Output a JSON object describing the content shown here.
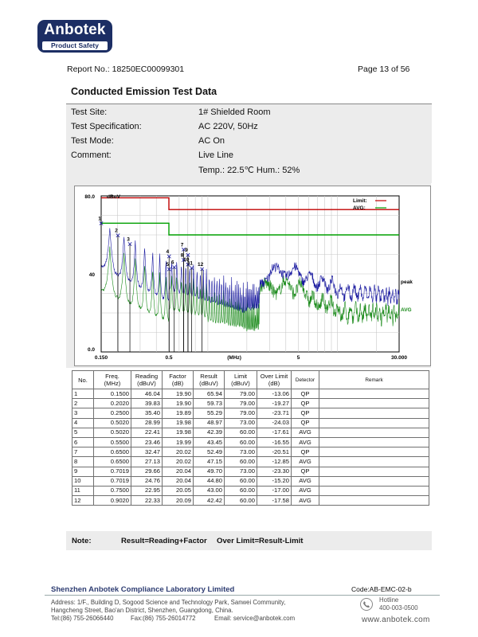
{
  "header": {
    "logo_name": "Anbotek",
    "logo_tag": "Product Safety",
    "report_no": "Report No.: 18250EC00099301",
    "page": "Page 13 of 56"
  },
  "title": "Conducted Emission Test Data",
  "info": [
    {
      "label": "Test Site:",
      "value": "1# Shielded Room"
    },
    {
      "label": "Test Specification:",
      "value": "AC 220V, 50Hz"
    },
    {
      "label": "Test Mode:",
      "value": "AC On"
    },
    {
      "label": "Comment:",
      "value": "Live Line"
    },
    {
      "label": "",
      "value": "Temp.: 22.5℃  Hum.: 52%"
    }
  ],
  "chart_data": {
    "type": "line",
    "ylabel": "dBuV",
    "xlabel": "(MHz)",
    "x_scale": "log",
    "xlim": [
      0.15,
      30.0
    ],
    "ylim": [
      0.0,
      80.0
    ],
    "x_tick_labels": [
      "0.150",
      "0.5",
      "(MHz)",
      "5",
      "30.000"
    ],
    "y_tick_labels": [
      "80.0",
      "40",
      "0.0"
    ],
    "legend": [
      {
        "name": "Limit:",
        "color": "#c00000"
      },
      {
        "name": "AVG:",
        "color": "#00a000"
      }
    ],
    "trace_labels": [
      "peak",
      "AVG"
    ],
    "limits": [
      {
        "name": "QP limit",
        "color": "#c00000",
        "points": [
          [
            0.15,
            79
          ],
          [
            0.5,
            79
          ],
          [
            0.5,
            73
          ],
          [
            30,
            73
          ]
        ]
      },
      {
        "name": "AVG limit",
        "color": "#00a000",
        "points": [
          [
            0.15,
            66
          ],
          [
            0.5,
            66
          ],
          [
            0.5,
            60
          ],
          [
            30,
            60
          ]
        ]
      }
    ],
    "series": [
      {
        "name": "peak",
        "color": "#1a1aa0"
      },
      {
        "name": "AVG",
        "color": "#1a8a1a"
      }
    ],
    "markers": [
      {
        "n": "1",
        "f": 0.15,
        "lvl": 65.94
      },
      {
        "n": "2",
        "f": 0.202,
        "lvl": 59.73
      },
      {
        "n": "3",
        "f": 0.25,
        "lvl": 55.29
      },
      {
        "n": "4",
        "f": 0.502,
        "lvl": 48.97
      },
      {
        "n": "5",
        "f": 0.502,
        "lvl": 42.39
      },
      {
        "n": "6",
        "f": 0.55,
        "lvl": 43.45
      },
      {
        "n": "7",
        "f": 0.65,
        "lvl": 52.49
      },
      {
        "n": "8",
        "f": 0.65,
        "lvl": 47.15
      },
      {
        "n": "9",
        "f": 0.7019,
        "lvl": 49.7
      },
      {
        "n": "10",
        "f": 0.7019,
        "lvl": 44.8
      },
      {
        "n": "11",
        "f": 0.75,
        "lvl": 43.0
      },
      {
        "n": "12",
        "f": 0.902,
        "lvl": 42.42
      }
    ]
  },
  "table": {
    "headers": [
      "No.",
      "Freq.\n(MHz)",
      "Reading\n(dBuV)",
      "Factor\n(dB)",
      "Result\n(dBuV)",
      "Limit\n(dBuV)",
      "Over Limit\n(dB)",
      "Detector",
      "Remark"
    ],
    "rows": [
      [
        "1",
        "0.1500",
        "46.04",
        "19.90",
        "65.94",
        "79.00",
        "-13.06",
        "QP",
        ""
      ],
      [
        "2",
        "0.2020",
        "39.83",
        "19.90",
        "59.73",
        "79.00",
        "-19.27",
        "QP",
        ""
      ],
      [
        "3",
        "0.2500",
        "35.40",
        "19.89",
        "55.29",
        "79.00",
        "-23.71",
        "QP",
        ""
      ],
      [
        "4",
        "0.5020",
        "28.99",
        "19.98",
        "48.97",
        "73.00",
        "-24.03",
        "QP",
        ""
      ],
      [
        "5",
        "0.5020",
        "22.41",
        "19.98",
        "42.39",
        "60.00",
        "-17.61",
        "AVG",
        ""
      ],
      [
        "6",
        "0.5500",
        "23.46",
        "19.99",
        "43.45",
        "60.00",
        "-16.55",
        "AVG",
        ""
      ],
      [
        "7",
        "0.6500",
        "32.47",
        "20.02",
        "52.49",
        "73.00",
        "-20.51",
        "QP",
        ""
      ],
      [
        "8",
        "0.6500",
        "27.13",
        "20.02",
        "47.15",
        "60.00",
        "-12.85",
        "AVG",
        ""
      ],
      [
        "9",
        "0.7019",
        "29.66",
        "20.04",
        "49.70",
        "73.00",
        "-23.30",
        "QP",
        ""
      ],
      [
        "10",
        "0.7019",
        "24.76",
        "20.04",
        "44.80",
        "60.00",
        "-15.20",
        "AVG",
        ""
      ],
      [
        "11",
        "0.7500",
        "22.95",
        "20.05",
        "43.00",
        "60.00",
        "-17.00",
        "AVG",
        ""
      ],
      [
        "12",
        "0.9020",
        "22.33",
        "20.09",
        "42.42",
        "60.00",
        "-17.58",
        "AVG",
        ""
      ]
    ]
  },
  "note": {
    "label": "Note:",
    "formula1": "Result=Reading+Factor",
    "formula2": "Over Limit=Result-Limit"
  },
  "footer": {
    "company": "Shenzhen Anbotek Compliance Laboratory Limited",
    "code": "Code:AB-EMC-02-b",
    "address1": "Address: 1/F., Building D, Sogood Science and Technology Park, Sanwei Community,",
    "address2": "Hangcheng Street, Bao'an District, Shenzhen, Guangdong, China.",
    "tel": "Tel:(86) 755-26066440",
    "fax": "Fax:(86) 755-26014772",
    "email": "Email: service@anbotek.com",
    "hotline_label": "Hotline",
    "hotline": "400-003-0500",
    "website": "www.anbotek.com"
  }
}
